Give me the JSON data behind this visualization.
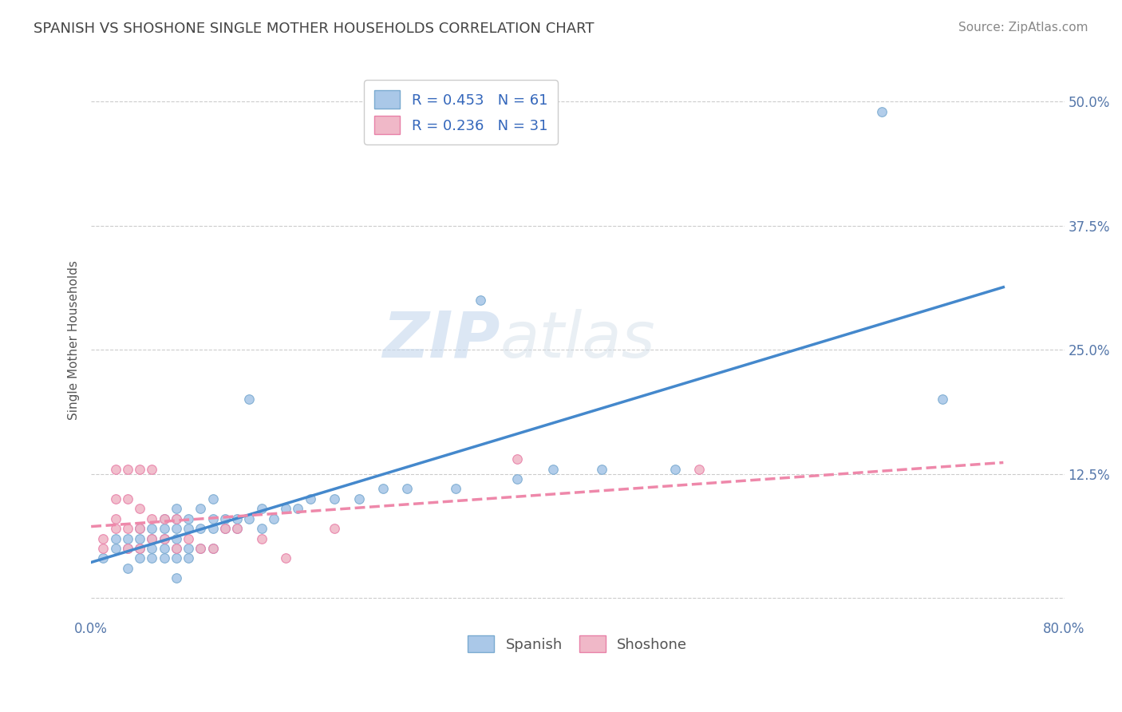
{
  "title": "SPANISH VS SHOSHONE SINGLE MOTHER HOUSEHOLDS CORRELATION CHART",
  "source": "Source: ZipAtlas.com",
  "ylabel": "Single Mother Households",
  "xlim": [
    0.0,
    0.8
  ],
  "ylim": [
    -0.02,
    0.54
  ],
  "xticks": [
    0.0,
    0.8
  ],
  "xticklabels": [
    "0.0%",
    "80.0%"
  ],
  "yticks": [
    0.0,
    0.125,
    0.25,
    0.375,
    0.5
  ],
  "yticklabels": [
    "",
    "12.5%",
    "25.0%",
    "37.5%",
    "50.0%"
  ],
  "grid_color": "#cccccc",
  "background_color": "#ffffff",
  "color_spanish": "#aac8e8",
  "color_shoshone": "#f0b8c8",
  "color_edge_spanish": "#7aaad0",
  "color_edge_shoshone": "#e880a8",
  "color_line_spanish": "#4488cc",
  "color_line_shoshone": "#ee88aa",
  "spanish_x": [
    0.01,
    0.02,
    0.02,
    0.03,
    0.03,
    0.03,
    0.04,
    0.04,
    0.04,
    0.04,
    0.05,
    0.05,
    0.05,
    0.05,
    0.06,
    0.06,
    0.06,
    0.06,
    0.06,
    0.07,
    0.07,
    0.07,
    0.07,
    0.07,
    0.07,
    0.07,
    0.08,
    0.08,
    0.08,
    0.08,
    0.09,
    0.09,
    0.09,
    0.1,
    0.1,
    0.1,
    0.1,
    0.11,
    0.11,
    0.12,
    0.12,
    0.13,
    0.13,
    0.14,
    0.14,
    0.15,
    0.16,
    0.17,
    0.18,
    0.2,
    0.22,
    0.24,
    0.26,
    0.3,
    0.32,
    0.35,
    0.38,
    0.42,
    0.48,
    0.65,
    0.7
  ],
  "spanish_y": [
    0.04,
    0.05,
    0.06,
    0.05,
    0.06,
    0.03,
    0.04,
    0.05,
    0.06,
    0.07,
    0.04,
    0.05,
    0.06,
    0.07,
    0.04,
    0.05,
    0.06,
    0.07,
    0.08,
    0.02,
    0.04,
    0.05,
    0.06,
    0.07,
    0.08,
    0.09,
    0.04,
    0.05,
    0.07,
    0.08,
    0.05,
    0.07,
    0.09,
    0.05,
    0.07,
    0.08,
    0.1,
    0.07,
    0.08,
    0.07,
    0.08,
    0.2,
    0.08,
    0.07,
    0.09,
    0.08,
    0.09,
    0.09,
    0.1,
    0.1,
    0.1,
    0.11,
    0.11,
    0.11,
    0.3,
    0.12,
    0.13,
    0.13,
    0.13,
    0.49,
    0.2
  ],
  "shoshone_x": [
    0.01,
    0.01,
    0.02,
    0.02,
    0.02,
    0.02,
    0.03,
    0.03,
    0.03,
    0.03,
    0.04,
    0.04,
    0.04,
    0.04,
    0.05,
    0.05,
    0.05,
    0.06,
    0.06,
    0.07,
    0.07,
    0.08,
    0.09,
    0.1,
    0.11,
    0.12,
    0.14,
    0.16,
    0.2,
    0.35,
    0.5
  ],
  "shoshone_y": [
    0.05,
    0.06,
    0.07,
    0.08,
    0.1,
    0.13,
    0.05,
    0.07,
    0.1,
    0.13,
    0.05,
    0.07,
    0.09,
    0.13,
    0.06,
    0.08,
    0.13,
    0.06,
    0.08,
    0.05,
    0.08,
    0.06,
    0.05,
    0.05,
    0.07,
    0.07,
    0.06,
    0.04,
    0.07,
    0.14,
    0.13
  ],
  "title_fontsize": 13,
  "axis_label_fontsize": 11,
  "tick_fontsize": 12,
  "legend_fontsize": 13,
  "source_fontsize": 11
}
